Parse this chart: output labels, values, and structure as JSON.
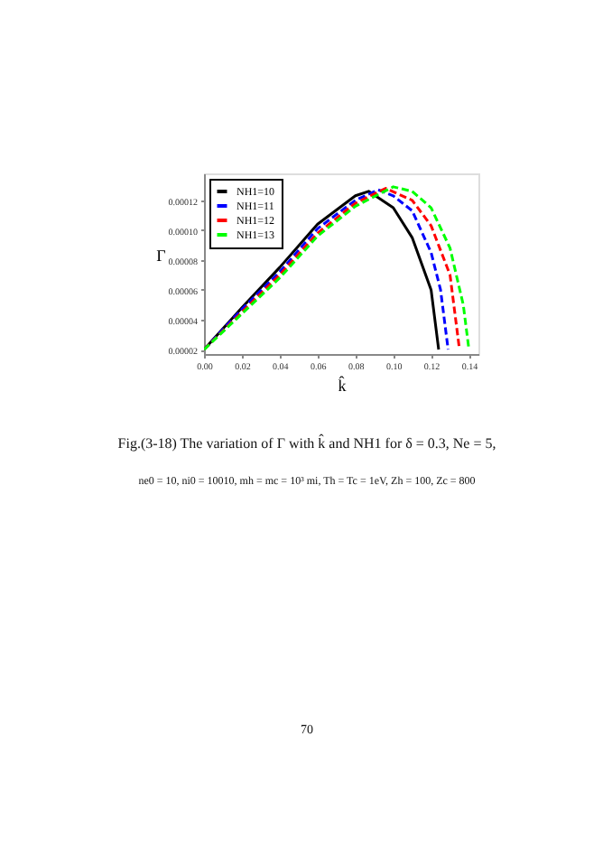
{
  "chart_data": {
    "type": "line",
    "xlabel": "k̂",
    "ylabel": "Γ",
    "xlim": [
      0.0,
      0.145
    ],
    "ylim": [
      1.7e-05,
      0.000138
    ],
    "xticks": [
      {
        "value": 0,
        "label": "0.00"
      },
      {
        "value": 0.02,
        "label": "0.02"
      },
      {
        "value": 0.04,
        "label": "0.04"
      },
      {
        "value": 0.06,
        "label": "0.06"
      },
      {
        "value": 0.08,
        "label": "0.08"
      },
      {
        "value": 0.1,
        "label": "0.10"
      },
      {
        "value": 0.12,
        "label": "0.12"
      },
      {
        "value": 0.14,
        "label": "0.14"
      }
    ],
    "yticks": [
      {
        "value": 2e-05,
        "label": "0.00002"
      },
      {
        "value": 4e-05,
        "label": "0.00004"
      },
      {
        "value": 6e-05,
        "label": "0.00006"
      },
      {
        "value": 8e-05,
        "label": "0.00008"
      },
      {
        "value": 0.0001,
        "label": "0.00010"
      },
      {
        "value": 0.00012,
        "label": "0.00012"
      }
    ],
    "grid": false,
    "legend": "top left",
    "marker": "none",
    "series": [
      {
        "name": "NH1=10",
        "color": "#000000",
        "line_style": "solid",
        "x": [
          0,
          0.02,
          0.04,
          0.06,
          0.08,
          0.087,
          0.1,
          0.11,
          0.12,
          0.124
        ],
        "values": [
          2e-05,
          4.8e-05,
          7.5e-05,
          0.000104,
          0.000123,
          0.000126,
          0.000115,
          9.5e-05,
          6e-05,
          2e-05
        ]
      },
      {
        "name": "NH1=11",
        "color": "#0000ff",
        "line_style": "dashed",
        "x": [
          0,
          0.02,
          0.04,
          0.06,
          0.08,
          0.092,
          0.1,
          0.11,
          0.12,
          0.125,
          0.129
        ],
        "values": [
          2e-05,
          4.7e-05,
          7.2e-05,
          0.000101,
          0.00012,
          0.000127,
          0.000123,
          0.000113,
          8.5e-05,
          6e-05,
          2e-05
        ]
      },
      {
        "name": "NH1=12",
        "color": "#ff0000",
        "line_style": "dashed",
        "x": [
          0,
          0.02,
          0.04,
          0.06,
          0.08,
          0.096,
          0.11,
          0.12,
          0.13,
          0.135
        ],
        "values": [
          2e-05,
          4.5e-05,
          7e-05,
          9.8e-05,
          0.000118,
          0.000128,
          0.00012,
          0.000103,
          7e-05,
          2e-05
        ]
      },
      {
        "name": "NH1=13",
        "color": "#00ff00",
        "line_style": "dashed",
        "x": [
          0,
          0.02,
          0.04,
          0.06,
          0.08,
          0.1,
          0.11,
          0.12,
          0.13,
          0.137,
          0.14
        ],
        "values": [
          2e-05,
          4.4e-05,
          6.8e-05,
          9.6e-05,
          0.000116,
          0.000129,
          0.000126,
          0.000115,
          8.8e-05,
          5e-05,
          2e-05
        ]
      }
    ],
    "annotations": [
      "Fig.(3-18) The variation of Γ with k̂ and NH1 for δ = 0.3, Ne = 5,",
      "ne0 = 10, ni0 = 10010, mh = mc = 10³ mi, Th = Tc = 1eV, Zh = 100, Zc = 800",
      "70"
    ]
  }
}
